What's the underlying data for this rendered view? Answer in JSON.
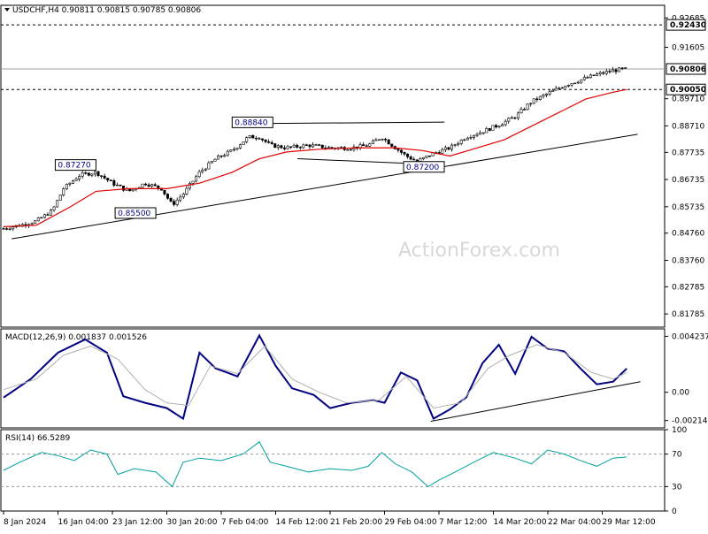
{
  "chart_data": [
    {
      "type": "candlestick",
      "header": "USDCHF,H4  0.90811 0.90815 0.90785 0.90806",
      "watermark": "ActionForex.com",
      "ylim": [
        0.813,
        0.9315
      ],
      "y_ticks": [
        "0.92685",
        "0.91605",
        "0.89710",
        "0.88710",
        "0.87735",
        "0.86735",
        "0.85735",
        "0.84760",
        "0.83760",
        "0.82785",
        "0.81785"
      ],
      "x_ticks": [
        "8 Jan 2024",
        "16 Jan 04:00",
        "23 Jan 12:00",
        "30 Jan 20:00",
        "7 Feb 04:00",
        "14 Feb 12:00",
        "21 Feb 20:00",
        "29 Feb 04:00",
        "7 Mar 12:00",
        "14 Mar 20:00",
        "22 Mar 04:00",
        "29 Mar 12:00"
      ],
      "price_labels": [
        {
          "text": "0.92430",
          "value": 0.9243,
          "style": "dashed"
        },
        {
          "text": "0.90806",
          "value": 0.90806,
          "style": "solid"
        },
        {
          "text": "0.90050",
          "value": 0.9005,
          "style": "dashed"
        }
      ],
      "annotations": [
        {
          "text": "0.88840",
          "value": 0.8884,
          "at_tick": 4.2
        },
        {
          "text": "0.87270",
          "value": 0.8727,
          "at_tick": 0.95
        },
        {
          "text": "0.85500",
          "value": 0.855,
          "at_tick": 2.05
        },
        {
          "text": "0.87200",
          "value": 0.872,
          "at_tick": 7.35
        }
      ],
      "close_path": [
        [
          0,
          0.8493
        ],
        [
          0.3,
          0.8505
        ],
        [
          0.6,
          0.852
        ],
        [
          0.9,
          0.856
        ],
        [
          1.1,
          0.864
        ],
        [
          1.4,
          0.869
        ],
        [
          1.7,
          0.87
        ],
        [
          2.0,
          0.866
        ],
        [
          2.3,
          0.863
        ],
        [
          2.6,
          0.866
        ],
        [
          2.9,
          0.864
        ],
        [
          3.1,
          0.858
        ],
        [
          3.3,
          0.862
        ],
        [
          3.6,
          0.87
        ],
        [
          3.9,
          0.875
        ],
        [
          4.2,
          0.878
        ],
        [
          4.5,
          0.883
        ],
        [
          4.7,
          0.883
        ],
        [
          4.9,
          0.88
        ],
        [
          5.2,
          0.879
        ],
        [
          5.6,
          0.88
        ],
        [
          6.0,
          0.879
        ],
        [
          6.4,
          0.879
        ],
        [
          6.7,
          0.88
        ],
        [
          6.95,
          0.883
        ],
        [
          7.2,
          0.879
        ],
        [
          7.4,
          0.876
        ],
        [
          7.6,
          0.874
        ],
        [
          7.9,
          0.877
        ],
        [
          8.2,
          0.879
        ],
        [
          8.5,
          0.883
        ],
        [
          8.8,
          0.885
        ],
        [
          9.1,
          0.8875
        ],
        [
          9.4,
          0.8905
        ],
        [
          9.7,
          0.896
        ],
        [
          10.0,
          0.899
        ],
        [
          10.3,
          0.902
        ],
        [
          10.6,
          0.904
        ],
        [
          10.9,
          0.906
        ],
        [
          11.2,
          0.9075
        ],
        [
          11.45,
          0.9081
        ]
      ],
      "ma_path": [
        [
          0,
          0.85
        ],
        [
          0.6,
          0.8505
        ],
        [
          1.2,
          0.857
        ],
        [
          1.7,
          0.863
        ],
        [
          2.3,
          0.864
        ],
        [
          3.0,
          0.864
        ],
        [
          3.6,
          0.866
        ],
        [
          4.2,
          0.87
        ],
        [
          4.7,
          0.875
        ],
        [
          5.2,
          0.8775
        ],
        [
          5.8,
          0.8785
        ],
        [
          6.5,
          0.879
        ],
        [
          7.2,
          0.879
        ],
        [
          7.7,
          0.878
        ],
        [
          8.2,
          0.876
        ],
        [
          8.7,
          0.879
        ],
        [
          9.2,
          0.882
        ],
        [
          9.7,
          0.887
        ],
        [
          10.2,
          0.892
        ],
        [
          10.7,
          0.897
        ],
        [
          11.2,
          0.8995
        ],
        [
          11.45,
          0.9005
        ]
      ],
      "trendlines": [
        {
          "from": [
            0.15,
            0.8455
          ],
          "to": [
            11.65,
            0.884
          ]
        },
        {
          "from": [
            4.4,
            0.8879
          ],
          "to": [
            8.1,
            0.8885
          ]
        },
        {
          "from": [
            5.4,
            0.875
          ],
          "to": [
            7.8,
            0.873
          ]
        }
      ]
    },
    {
      "type": "line",
      "title": "MACD(12,26,9) 0.001837 0.001526",
      "ylim": [
        -0.0027,
        0.0048
      ],
      "y_ticks": [
        "0.004237",
        "0.00",
        "-0.002142"
      ],
      "series": [
        {
          "color": "#000080",
          "points": [
            [
              0,
              -0.0004
            ],
            [
              0.5,
              0.001
            ],
            [
              1.0,
              0.003
            ],
            [
              1.5,
              0.004
            ],
            [
              1.9,
              0.003
            ],
            [
              2.2,
              -0.0003
            ],
            [
              2.6,
              -0.0008
            ],
            [
              3.0,
              -0.0012
            ],
            [
              3.3,
              -0.002
            ],
            [
              3.6,
              0.003
            ],
            [
              3.9,
              0.0018
            ],
            [
              4.3,
              0.0012
            ],
            [
              4.7,
              0.0043
            ],
            [
              5.0,
              0.002
            ],
            [
              5.3,
              0.0003
            ],
            [
              5.7,
              -0.0002
            ],
            [
              6.0,
              -0.0012
            ],
            [
              6.4,
              -0.0008
            ],
            [
              6.8,
              -0.0006
            ],
            [
              7.0,
              -0.0008
            ],
            [
              7.3,
              0.0015
            ],
            [
              7.6,
              0.0009
            ],
            [
              7.9,
              -0.002
            ],
            [
              8.2,
              -0.0013
            ],
            [
              8.5,
              -0.0004
            ],
            [
              8.8,
              0.0022
            ],
            [
              9.1,
              0.0036
            ],
            [
              9.4,
              0.0014
            ],
            [
              9.7,
              0.0042
            ],
            [
              10.0,
              0.0033
            ],
            [
              10.3,
              0.0031
            ],
            [
              10.6,
              0.0018
            ],
            [
              10.9,
              0.0006
            ],
            [
              11.2,
              0.0008
            ],
            [
              11.45,
              0.0018
            ]
          ]
        },
        {
          "color": "#b0b0b0",
          "points": [
            [
              0,
              0.0002
            ],
            [
              0.6,
              0.001
            ],
            [
              1.1,
              0.0028
            ],
            [
              1.6,
              0.0035
            ],
            [
              2.1,
              0.0025
            ],
            [
              2.6,
              0.0002
            ],
            [
              3.0,
              -0.0008
            ],
            [
              3.4,
              -0.001
            ],
            [
              3.8,
              0.002
            ],
            [
              4.3,
              0.0014
            ],
            [
              4.8,
              0.0035
            ],
            [
              5.3,
              0.001
            ],
            [
              5.8,
              0.0
            ],
            [
              6.3,
              -0.0008
            ],
            [
              6.9,
              -0.0006
            ],
            [
              7.4,
              0.0012
            ],
            [
              7.9,
              -0.0012
            ],
            [
              8.4,
              -0.0008
            ],
            [
              8.9,
              0.0018
            ],
            [
              9.3,
              0.0028
            ],
            [
              9.8,
              0.0036
            ],
            [
              10.3,
              0.003
            ],
            [
              10.8,
              0.0015
            ],
            [
              11.2,
              0.001
            ],
            [
              11.45,
              0.0015
            ]
          ]
        }
      ],
      "trendline": {
        "from": [
          7.85,
          -0.0022
        ],
        "to": [
          11.7,
          0.0008
        ]
      }
    },
    {
      "type": "line",
      "title": "RSI(14) 66.5289",
      "ylim": [
        0,
        100
      ],
      "y_ticks": [
        100,
        70,
        30,
        0
      ],
      "levels": [
        70,
        30
      ],
      "series": [
        {
          "color": "#00a0a0",
          "points": [
            [
              0,
              50
            ],
            [
              0.3,
              60
            ],
            [
              0.7,
              72
            ],
            [
              1.0,
              68
            ],
            [
              1.3,
              62
            ],
            [
              1.6,
              75
            ],
            [
              1.9,
              70
            ],
            [
              2.1,
              45
            ],
            [
              2.4,
              52
            ],
            [
              2.8,
              48
            ],
            [
              3.1,
              30
            ],
            [
              3.3,
              60
            ],
            [
              3.6,
              65
            ],
            [
              4.0,
              62
            ],
            [
              4.4,
              70
            ],
            [
              4.7,
              85
            ],
            [
              4.9,
              60
            ],
            [
              5.2,
              55
            ],
            [
              5.6,
              48
            ],
            [
              6.0,
              52
            ],
            [
              6.4,
              50
            ],
            [
              6.7,
              55
            ],
            [
              6.95,
              72
            ],
            [
              7.2,
              58
            ],
            [
              7.5,
              48
            ],
            [
              7.8,
              30
            ],
            [
              8.0,
              38
            ],
            [
              8.3,
              48
            ],
            [
              8.7,
              62
            ],
            [
              9.0,
              72
            ],
            [
              9.4,
              65
            ],
            [
              9.7,
              58
            ],
            [
              10.0,
              75
            ],
            [
              10.3,
              70
            ],
            [
              10.6,
              62
            ],
            [
              10.9,
              55
            ],
            [
              11.2,
              65
            ],
            [
              11.45,
              66.5
            ]
          ]
        }
      ]
    }
  ]
}
